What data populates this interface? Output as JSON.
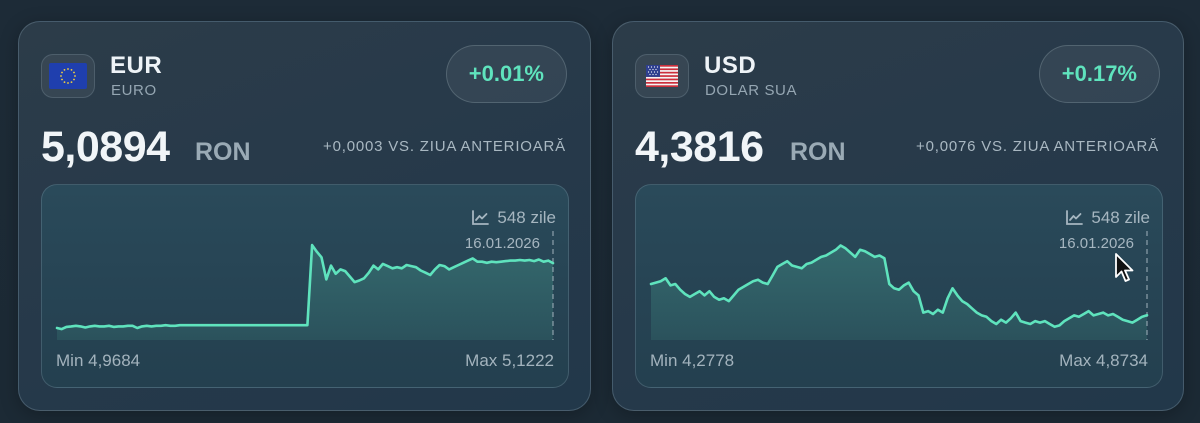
{
  "cards": [
    {
      "code": "EUR",
      "name": "EURO",
      "flag_icon": "eu-flag-icon",
      "change_pct": "+0.01%",
      "rate": "5,0894",
      "unit": "RON",
      "delta": "+0,0003 VS. ZIUA ANTERIOARĂ",
      "period_label": "548 zile",
      "period_icon": "line-chart-icon",
      "last_date": "16.01.2026",
      "min_label": "Min 4,9684",
      "max_label": "Max 5,1222"
    },
    {
      "code": "USD",
      "name": "DOLAR SUA",
      "flag_icon": "us-flag-icon",
      "change_pct": "+0.17%",
      "rate": "4,3816",
      "unit": "RON",
      "delta": "+0,0076 VS. ZIUA ANTERIOARĂ",
      "period_label": "548 zile",
      "period_icon": "line-chart-icon",
      "last_date": "16.01.2026",
      "min_label": "Min 4,2778",
      "max_label": "Max 4,8734"
    }
  ],
  "colors": {
    "accent": "#5fe3bd",
    "background": "#1d2b37",
    "card": "#2a3a47"
  },
  "chart_data": [
    {
      "type": "area",
      "title": "EUR / RON",
      "xlabel": "",
      "ylabel": "RON",
      "period_days": 548,
      "x_end_label": "16.01.2026",
      "ylim": [
        4.9684,
        5.1222
      ],
      "min": 4.9684,
      "max": 5.1222,
      "grid": false,
      "values": [
        4.972,
        4.97,
        4.974,
        4.975,
        4.976,
        4.975,
        4.973,
        4.975,
        4.976,
        4.975,
        4.975,
        4.976,
        4.974,
        4.975,
        4.975,
        4.976,
        4.976,
        4.972,
        4.975,
        4.976,
        4.975,
        4.976,
        4.976,
        4.977,
        4.976,
        4.976,
        4.977,
        4.977,
        4.977,
        4.977,
        4.977,
        4.977,
        4.977,
        4.977,
        4.977,
        4.977,
        4.977,
        4.977,
        4.977,
        4.977,
        4.977,
        4.977,
        4.977,
        4.977,
        4.977,
        4.977,
        4.977,
        4.977,
        4.977,
        4.977,
        4.977,
        4.977,
        4.977,
        4.977,
        5.122,
        5.11,
        5.1,
        5.06,
        5.085,
        5.07,
        5.078,
        5.075,
        5.065,
        5.055,
        5.058,
        5.062,
        5.072,
        5.085,
        5.078,
        5.088,
        5.084,
        5.08,
        5.082,
        5.08,
        5.086,
        5.084,
        5.082,
        5.076,
        5.072,
        5.068,
        5.078,
        5.086,
        5.084,
        5.078,
        5.082,
        5.086,
        5.09,
        5.094,
        5.098,
        5.092,
        5.092,
        5.09,
        5.092,
        5.091,
        5.092,
        5.093,
        5.094,
        5.094,
        5.095,
        5.094,
        5.095,
        5.093,
        5.096,
        5.092,
        5.094,
        5.0894
      ]
    },
    {
      "type": "area",
      "title": "USD / RON",
      "xlabel": "",
      "ylabel": "RON",
      "period_days": 548,
      "x_end_label": "16.01.2026",
      "ylim": [
        4.2778,
        4.8734
      ],
      "min": 4.2778,
      "max": 4.8734,
      "grid": false,
      "values": [
        4.6,
        4.61,
        4.62,
        4.64,
        4.59,
        4.6,
        4.56,
        4.53,
        4.51,
        4.53,
        4.55,
        4.52,
        4.55,
        4.51,
        4.49,
        4.5,
        4.48,
        4.52,
        4.56,
        4.58,
        4.6,
        4.62,
        4.63,
        4.61,
        4.6,
        4.66,
        4.72,
        4.74,
        4.76,
        4.73,
        4.72,
        4.71,
        4.74,
        4.75,
        4.77,
        4.79,
        4.8,
        4.82,
        4.84,
        4.87,
        4.85,
        4.82,
        4.79,
        4.84,
        4.83,
        4.81,
        4.79,
        4.8,
        4.78,
        4.6,
        4.57,
        4.56,
        4.59,
        4.61,
        4.55,
        4.52,
        4.4,
        4.41,
        4.39,
        4.42,
        4.4,
        4.5,
        4.57,
        4.52,
        4.48,
        4.46,
        4.43,
        4.4,
        4.38,
        4.37,
        4.34,
        4.32,
        4.35,
        4.33,
        4.36,
        4.4,
        4.34,
        4.33,
        4.32,
        4.34,
        4.33,
        4.34,
        4.32,
        4.3,
        4.31,
        4.34,
        4.36,
        4.38,
        4.37,
        4.39,
        4.41,
        4.38,
        4.39,
        4.4,
        4.38,
        4.39,
        4.37,
        4.35,
        4.34,
        4.33,
        4.35,
        4.37,
        4.3816
      ]
    }
  ]
}
